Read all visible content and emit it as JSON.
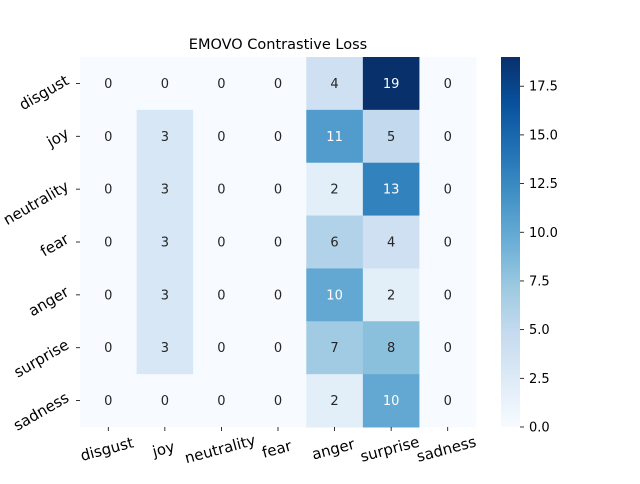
{
  "chart_data": {
    "type": "heatmap",
    "title": "EMOVO Contrastive Loss",
    "xlabel": "",
    "ylabel": "",
    "x_categories": [
      "disgust",
      "joy",
      "neutrality",
      "fear",
      "anger",
      "surprise",
      "sadness"
    ],
    "y_categories": [
      "disgust",
      "joy",
      "neutrality",
      "fear",
      "anger",
      "surprise",
      "sadness"
    ],
    "values": [
      [
        0,
        0,
        0,
        0,
        4,
        19,
        0
      ],
      [
        0,
        3,
        0,
        0,
        11,
        5,
        0
      ],
      [
        0,
        3,
        0,
        0,
        2,
        13,
        0
      ],
      [
        0,
        3,
        0,
        0,
        6,
        4,
        0
      ],
      [
        0,
        3,
        0,
        0,
        10,
        2,
        0
      ],
      [
        0,
        3,
        0,
        0,
        7,
        8,
        0
      ],
      [
        0,
        0,
        0,
        0,
        2,
        10,
        0
      ]
    ],
    "colorbar": {
      "range": [
        0,
        19
      ],
      "ticks": [
        "0.0",
        "2.5",
        "5.0",
        "7.5",
        "10.0",
        "12.5",
        "15.0",
        "17.5"
      ]
    },
    "colormap": [
      "#f7fbff",
      "#deebf7",
      "#c6dbef",
      "#9ecae1",
      "#6baed6",
      "#4292c6",
      "#2171b5",
      "#08519c",
      "#08306b"
    ]
  }
}
